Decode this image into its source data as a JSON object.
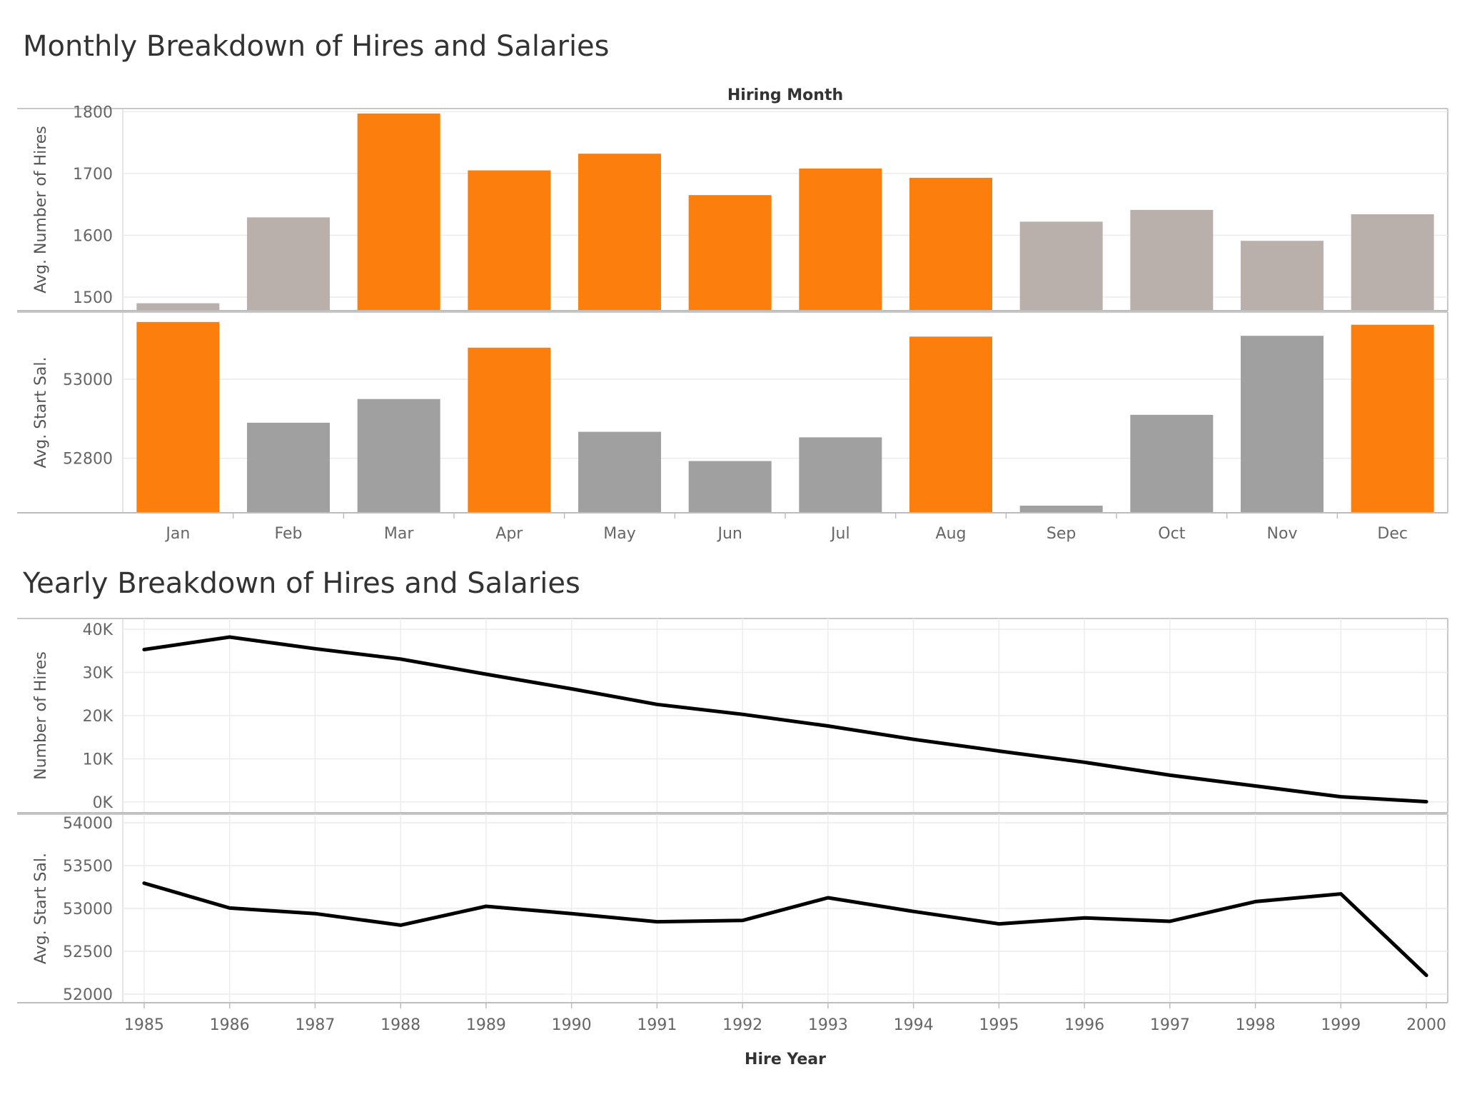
{
  "chart_data": [
    {
      "type": "bar",
      "title": "Monthly Breakdown of Hires and Salaries",
      "header": "Hiring Month",
      "categories": [
        "Jan",
        "Feb",
        "Mar",
        "Apr",
        "May",
        "Jun",
        "Jul",
        "Aug",
        "Sep",
        "Oct",
        "Nov",
        "Dec"
      ],
      "panels": [
        {
          "ylabel": "Avg. Number of Hires",
          "ylim": [
            1478,
            1805
          ],
          "yticks": [
            1500,
            1600,
            1700,
            1800
          ],
          "tick_labels": [
            "1500",
            "1600",
            "1700",
            "1800"
          ],
          "values": [
            1490,
            1629,
            1797,
            1705,
            1732,
            1665,
            1708,
            1693,
            1622,
            1641,
            1591,
            1634
          ],
          "highlighted": [
            false,
            false,
            true,
            true,
            true,
            true,
            true,
            true,
            false,
            false,
            false,
            false
          ]
        },
        {
          "ylabel": "Avg. Start Sal.",
          "ylim": [
            52662,
            53170
          ],
          "yticks": [
            52800,
            53000
          ],
          "tick_labels": [
            "52800",
            "53000"
          ],
          "values": [
            53145,
            52890,
            52950,
            53080,
            52867,
            52793,
            52853,
            53108,
            52680,
            52910,
            53110,
            53138
          ],
          "highlighted": [
            true,
            false,
            false,
            true,
            false,
            false,
            false,
            true,
            false,
            false,
            false,
            true
          ]
        }
      ],
      "colors": {
        "highlight": "#fc7f0e",
        "base_hires": "#bab0ab",
        "base_salary": "#a0a0a0"
      }
    },
    {
      "type": "line",
      "title": "Yearly Breakdown of Hires and Salaries",
      "xlabel": "Hire Year",
      "x": [
        1985,
        1986,
        1987,
        1988,
        1989,
        1990,
        1991,
        1992,
        1993,
        1994,
        1995,
        1996,
        1997,
        1998,
        1999,
        2000
      ],
      "xlim": [
        1984.75,
        2000.25
      ],
      "panels": [
        {
          "ylabel": "Number of Hires",
          "ylim": [
            -2500,
            42500
          ],
          "yticks": [
            0,
            10000,
            20000,
            30000,
            40000
          ],
          "tick_labels": [
            "0K",
            "10K",
            "20K",
            "30K",
            "40K"
          ],
          "values": [
            35300,
            38200,
            35500,
            33100,
            29600,
            26200,
            22600,
            20300,
            17600,
            14500,
            11800,
            9200,
            6200,
            3700,
            1200,
            70
          ]
        },
        {
          "ylabel": "Avg. Start Sal.",
          "ylim": [
            51900,
            54100
          ],
          "yticks": [
            52000,
            52500,
            53000,
            53500,
            54000
          ],
          "tick_labels": [
            "52000",
            "52500",
            "53000",
            "53500",
            "54000"
          ],
          "values": [
            53295,
            53005,
            52940,
            52805,
            53025,
            52940,
            52845,
            52860,
            53125,
            52965,
            52820,
            52890,
            52850,
            53080,
            53170,
            52220
          ]
        }
      ],
      "colors": {
        "line": "#000000"
      }
    }
  ]
}
